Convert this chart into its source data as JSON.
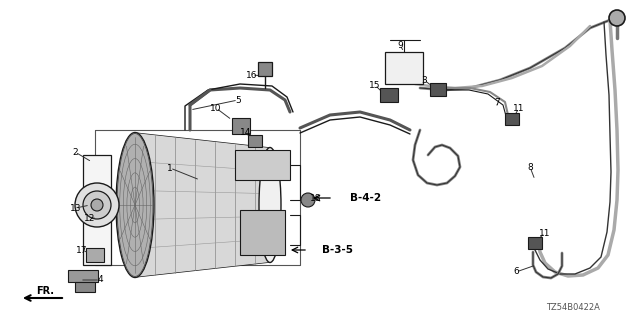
{
  "bg_color": "#ffffff",
  "fig_width": 6.4,
  "fig_height": 3.2,
  "dpi": 100,
  "watermark": "TZ54B0422A",
  "lc": "#1a1a1a",
  "lw_tube": 1.5,
  "lw_thin": 0.8
}
